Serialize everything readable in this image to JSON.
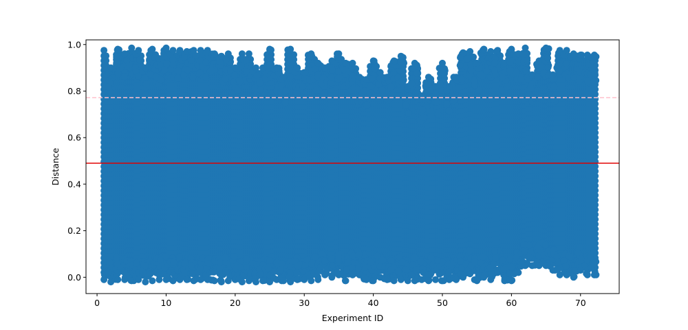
{
  "chart_data": {
    "type": "scatter",
    "title": "",
    "xlabel": "Experiment ID",
    "ylabel": "Distance",
    "xlim": [
      -1.6,
      75.6
    ],
    "ylim": [
      -0.07,
      1.02
    ],
    "xticks": [
      0,
      10,
      20,
      30,
      40,
      50,
      60,
      70
    ],
    "xtick_labels": [
      "0",
      "10",
      "20",
      "30",
      "40",
      "50",
      "60",
      "70"
    ],
    "yticks": [
      0.0,
      0.2,
      0.4,
      0.6,
      0.8,
      1.0
    ],
    "ytick_labels": [
      "0.0",
      "0.2",
      "0.4",
      "0.6",
      "0.8",
      "1.0"
    ],
    "grid": false,
    "legend": "none",
    "marker_color": "#1f77b4",
    "x_range": [
      1,
      72.3
    ],
    "reference_lines": [
      {
        "y": 0.49,
        "color": "#e00000",
        "style": "solid"
      },
      {
        "y": 0.772,
        "color": "#ffc0cb",
        "style": "dashed"
      }
    ],
    "envelope": {
      "x": [
        1,
        2,
        3,
        4,
        5,
        6,
        7,
        8,
        9,
        10,
        11,
        12,
        13,
        14,
        15,
        16,
        17,
        18,
        19,
        20,
        21,
        22,
        23,
        24,
        25,
        26,
        27,
        28,
        29,
        30,
        31,
        32,
        33,
        34,
        35,
        36,
        37,
        38,
        39,
        40,
        41,
        42,
        43,
        44,
        45,
        46,
        47,
        48,
        49,
        50,
        51,
        52,
        53,
        54,
        55,
        56,
        57,
        58,
        59,
        60,
        61,
        62,
        63,
        64,
        65,
        66,
        67,
        68,
        69,
        70,
        71,
        72
      ],
      "max": [
        0.975,
        0.9,
        0.98,
        0.96,
        0.985,
        0.975,
        0.9,
        0.98,
        0.94,
        0.985,
        0.975,
        0.975,
        0.97,
        0.975,
        0.975,
        0.975,
        0.96,
        0.95,
        0.96,
        0.9,
        0.96,
        0.96,
        0.9,
        0.9,
        0.98,
        0.9,
        0.86,
        0.98,
        0.9,
        0.88,
        0.96,
        0.92,
        0.9,
        0.93,
        0.96,
        0.92,
        0.92,
        0.86,
        0.85,
        0.93,
        0.88,
        0.86,
        0.93,
        0.95,
        0.82,
        0.92,
        0.78,
        0.86,
        0.82,
        0.92,
        0.82,
        0.86,
        0.965,
        0.97,
        0.92,
        0.98,
        0.97,
        0.975,
        0.92,
        0.98,
        0.96,
        0.985,
        0.87,
        0.93,
        0.985,
        0.87,
        0.975,
        0.975,
        0.96,
        0.955,
        0.955,
        0.955
      ],
      "min": [
        -0.01,
        -0.02,
        -0.01,
        -0.01,
        -0.015,
        -0.01,
        -0.02,
        -0.015,
        -0.01,
        -0.01,
        -0.015,
        -0.01,
        -0.01,
        -0.015,
        -0.01,
        -0.01,
        -0.015,
        -0.02,
        -0.015,
        -0.01,
        -0.02,
        -0.015,
        -0.02,
        -0.015,
        -0.02,
        -0.01,
        -0.015,
        -0.02,
        -0.01,
        -0.01,
        -0.015,
        -0.01,
        0.01,
        0.0,
        0.01,
        -0.015,
        0.01,
        0.01,
        -0.01,
        -0.015,
        0.0,
        -0.01,
        -0.015,
        -0.01,
        -0.015,
        -0.015,
        -0.01,
        -0.015,
        -0.01,
        -0.015,
        -0.01,
        -0.01,
        0.0,
        0.015,
        -0.015,
        0.0,
        -0.01,
        0.02,
        -0.015,
        -0.015,
        0.02,
        0.05,
        0.05,
        0.05,
        0.05,
        0.03,
        0.01,
        0.01,
        0.0,
        0.03,
        0.01,
        0.01
      ]
    }
  }
}
